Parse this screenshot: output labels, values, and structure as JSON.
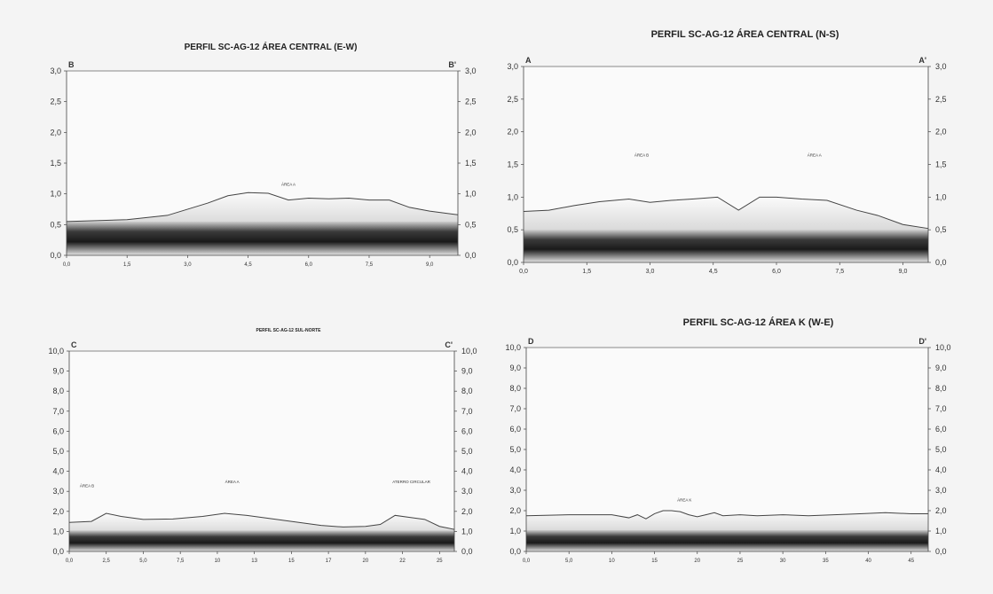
{
  "chart_data": [
    {
      "type": "area",
      "title": "PERFIL SC-AG-12 ÁREA CENTRAL (E-W)",
      "corner_left": "B",
      "corner_right": "B'",
      "ylim": [
        0,
        3
      ],
      "yticks": [
        "0,0",
        "0,5",
        "1,0",
        "1,5",
        "2,0",
        "2,5",
        "3,0"
      ],
      "ytick_values": [
        0,
        0.5,
        1,
        1.5,
        2,
        2.5,
        3
      ],
      "xlim": [
        0,
        9.7
      ],
      "xticks": [
        "0,0",
        "1,5",
        "3,0",
        "4,5",
        "6,0",
        "7,5",
        "9,0"
      ],
      "xtick_values": [
        0,
        1.5,
        3,
        4.5,
        6,
        7.5,
        9
      ],
      "base_level": 0.55,
      "x": [
        0,
        1.5,
        2.5,
        3.5,
        4.0,
        4.5,
        5.0,
        5.5,
        6.0,
        6.5,
        7.0,
        7.5,
        8.0,
        8.5,
        9.0,
        9.7
      ],
      "y": [
        0.55,
        0.58,
        0.65,
        0.85,
        0.97,
        1.02,
        1.01,
        0.9,
        0.93,
        0.92,
        0.93,
        0.9,
        0.9,
        0.78,
        0.72,
        0.66
      ],
      "annotations": [
        {
          "text": "ÁREA A",
          "x": 5.5,
          "y": 1.13
        }
      ]
    },
    {
      "type": "area",
      "title": "PERFIL SC-AG-12 ÁREA CENTRAL (N-S)",
      "corner_left": "A",
      "corner_right": "A'",
      "ylim": [
        0,
        3
      ],
      "yticks": [
        "0,0",
        "0,5",
        "1,0",
        "1,5",
        "2,0",
        "2,5",
        "3,0"
      ],
      "ytick_values": [
        0,
        0.5,
        1,
        1.5,
        2,
        2.5,
        3
      ],
      "xlim": [
        0,
        9.6
      ],
      "xticks": [
        "0,0",
        "1,5",
        "3,0",
        "4,5",
        "6,0",
        "7,5",
        "9,0"
      ],
      "xtick_values": [
        0,
        1.5,
        3,
        4.5,
        6,
        7.5,
        9
      ],
      "base_level": 0.5,
      "x": [
        0,
        0.6,
        1.2,
        1.8,
        2.5,
        3.0,
        3.5,
        4.0,
        4.6,
        5.1,
        5.6,
        6.0,
        6.6,
        7.2,
        7.9,
        8.4,
        9.0,
        9.6
      ],
      "y": [
        0.78,
        0.8,
        0.87,
        0.93,
        0.97,
        0.92,
        0.95,
        0.97,
        1.0,
        0.8,
        1.0,
        1.0,
        0.97,
        0.95,
        0.8,
        0.72,
        0.58,
        0.52
      ],
      "annotations": [
        {
          "text": "ÁREA B",
          "x": 2.8,
          "y": 1.62
        },
        {
          "text": "ÁREA A",
          "x": 6.9,
          "y": 1.62
        }
      ]
    },
    {
      "type": "area",
      "title": "PERFIL SC-AG-12 SUL-NORTE",
      "corner_left": "C",
      "corner_right": "C'",
      "ylim": [
        0,
        10
      ],
      "yticks": [
        "0,0",
        "1,0",
        "2,0",
        "3,0",
        "4,0",
        "5,0",
        "6,0",
        "7,0",
        "8,0",
        "9,0",
        "10,0"
      ],
      "ytick_values": [
        0,
        1,
        2,
        3,
        4,
        5,
        6,
        7,
        8,
        9,
        10
      ],
      "xlim": [
        0,
        26
      ],
      "xticks": [
        "0,0",
        "2,5",
        "5,0",
        "7,5",
        "10",
        "13",
        "15",
        "17",
        "20",
        "22",
        "25"
      ],
      "xtick_values": [
        0,
        2.5,
        5,
        7.5,
        10,
        12.5,
        15,
        17.5,
        20,
        22.5,
        25
      ],
      "base_level": 1.05,
      "x": [
        0,
        1.5,
        2.5,
        3.5,
        5,
        7,
        9,
        10.5,
        12,
        13.5,
        15,
        17,
        18.5,
        20,
        21,
        22,
        23,
        24,
        25,
        26
      ],
      "y": [
        1.45,
        1.5,
        1.9,
        1.75,
        1.6,
        1.62,
        1.75,
        1.9,
        1.8,
        1.65,
        1.5,
        1.3,
        1.22,
        1.25,
        1.35,
        1.8,
        1.7,
        1.6,
        1.25,
        1.1
      ],
      "annotations": [
        {
          "text": "ÁREA B",
          "x": 1.2,
          "y": 3.2
        },
        {
          "text": "ÁREA A",
          "x": 11.0,
          "y": 3.4
        },
        {
          "text": "ATERRO CIRCULAR",
          "x": 23.1,
          "y": 3.4
        }
      ]
    },
    {
      "type": "area",
      "title": "PERFIL SC-AG-12 ÁREA K (W-E)",
      "corner_left": "D",
      "corner_right": "D'",
      "ylim": [
        0,
        10
      ],
      "yticks": [
        "0,0",
        "1,0",
        "2,0",
        "3,0",
        "4,0",
        "5,0",
        "6,0",
        "7,0",
        "8,0",
        "9,0",
        "10,0"
      ],
      "ytick_values": [
        0,
        1,
        2,
        3,
        4,
        5,
        6,
        7,
        8,
        9,
        10
      ],
      "xlim": [
        0,
        47
      ],
      "xticks": [
        "0,0",
        "5,0",
        "10",
        "15",
        "20",
        "25",
        "30",
        "35",
        "40",
        "45"
      ],
      "xtick_values": [
        0,
        5,
        10,
        15,
        20,
        25,
        30,
        35,
        40,
        45
      ],
      "base_level": 1.05,
      "x": [
        0,
        5,
        10,
        12,
        13,
        14,
        15,
        16,
        17,
        18,
        19,
        20,
        21,
        22,
        23,
        25,
        27,
        30,
        33,
        36,
        39,
        42,
        45,
        47
      ],
      "y": [
        1.75,
        1.8,
        1.8,
        1.65,
        1.8,
        1.6,
        1.85,
        2.0,
        2.0,
        1.95,
        1.8,
        1.7,
        1.8,
        1.9,
        1.75,
        1.8,
        1.75,
        1.8,
        1.75,
        1.8,
        1.85,
        1.9,
        1.85,
        1.85
      ],
      "annotations": [
        {
          "text": "ÁREA K",
          "x": 18.5,
          "y": 2.45
        }
      ]
    }
  ]
}
